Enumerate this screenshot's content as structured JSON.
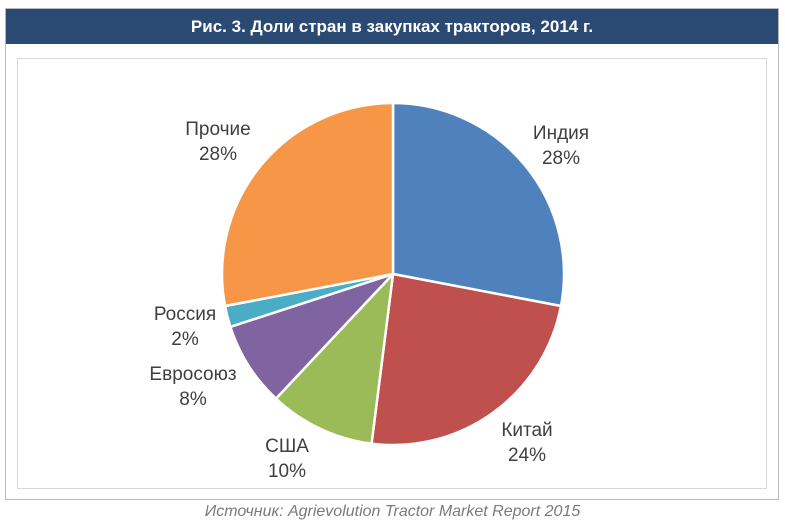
{
  "header": {
    "title": "Рис. 3. Доли стран в закупках тракторов, 2014 г."
  },
  "footer": {
    "source": "Источник: Agrievolution Tractor Market Report 2015"
  },
  "colors": {
    "header_bg": "#2a4a73",
    "header_text": "#ffffff",
    "label_text": "#3f3f3f",
    "source_text": "#7a7a7a",
    "outer_border": "#b9b9b9",
    "inner_border": "#d8d8d8",
    "slice_stroke": "#ffffff"
  },
  "chart_data": {
    "type": "pie",
    "title": "Рис. 3. Доли стран в закупках тракторов, 2014 г.",
    "source": "Источник: Agrievolution Tractor Market Report 2015",
    "start_angle_deg": 0,
    "direction": "clockwise",
    "legend": "none",
    "labels_position": "outside",
    "units": "%",
    "slices": [
      {
        "label": "Индия",
        "value": 28,
        "pct_label": "28%",
        "color": "#4F81BD"
      },
      {
        "label": "Китай",
        "value": 24,
        "pct_label": "24%",
        "color": "#C0504D"
      },
      {
        "label": "США",
        "value": 10,
        "pct_label": "10%",
        "color": "#9BBB59"
      },
      {
        "label": "Евросоюз",
        "value": 8,
        "pct_label": "8%",
        "color": "#8064A2"
      },
      {
        "label": "Россия",
        "value": 2,
        "pct_label": "2%",
        "color": "#4BACC6"
      },
      {
        "label": "Прочие",
        "value": 28,
        "pct_label": "28%",
        "color": "#F79646"
      }
    ]
  }
}
